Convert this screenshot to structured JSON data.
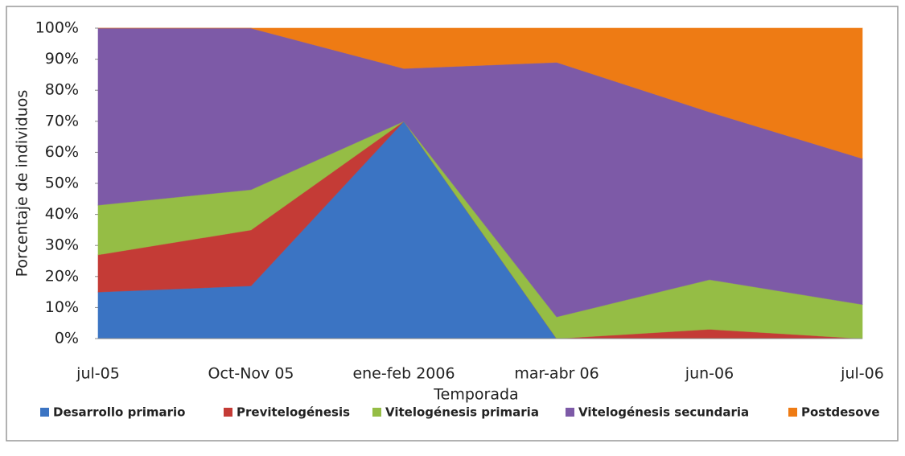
{
  "chart_data": {
    "type": "stacked_area",
    "x_label": "Temporada",
    "y_label": "Porcentaje de individuos",
    "categories": [
      "jul-05",
      "Oct-Nov 05",
      "ene-feb 2006",
      "mar-abr 06",
      "jun-06",
      "jul-06"
    ],
    "series": [
      {
        "name": "Desarrollo primario",
        "color": "#3b74c3",
        "values": [
          15,
          17,
          70,
          0,
          0,
          0
        ]
      },
      {
        "name": "Previtelogénesis",
        "color": "#c43b36",
        "values": [
          12,
          18,
          0,
          0,
          3,
          0
        ]
      },
      {
        "name": "Vitelogénesis primaria",
        "color": "#95bd45",
        "values": [
          16,
          13,
          0,
          7,
          16,
          11
        ]
      },
      {
        "name": "Vitelogénesis secundaria",
        "color": "#7d5aa7",
        "values": [
          57,
          52,
          17,
          82,
          54,
          47
        ]
      },
      {
        "name": "Postdesove",
        "color": "#ee7b14",
        "values": [
          0,
          0,
          13,
          11,
          27,
          42
        ]
      }
    ],
    "ylim": [
      0,
      100
    ],
    "yticks": [
      {
        "value": 0,
        "label": "0%"
      },
      {
        "value": 10,
        "label": "10%"
      },
      {
        "value": 20,
        "label": "20%"
      },
      {
        "value": 30,
        "label": "30%"
      },
      {
        "value": 40,
        "label": "40%"
      },
      {
        "value": 50,
        "label": "50%"
      },
      {
        "value": 60,
        "label": "60%"
      },
      {
        "value": 70,
        "label": "70%"
      },
      {
        "value": 80,
        "label": "80%"
      },
      {
        "value": 90,
        "label": "90%"
      },
      {
        "value": 100,
        "label": "100%"
      }
    ],
    "legend": "bottom"
  }
}
